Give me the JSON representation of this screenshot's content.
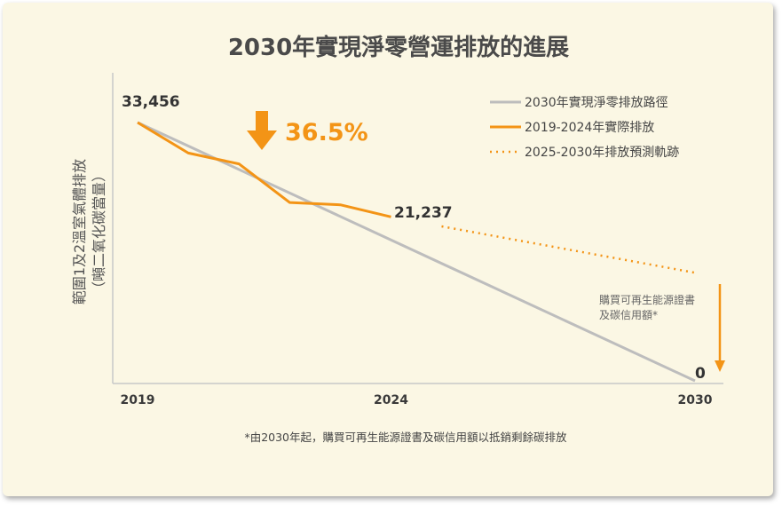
{
  "colors": {
    "background": "#fbf7e4",
    "target_path": "#bdbdbd",
    "actual": "#f39416",
    "axis": "#c8c8c8",
    "text": "#333333"
  },
  "chart_data": {
    "type": "line",
    "title": "2030年實現淨零營運排放的進展",
    "ylabel_line1": "範圍1及2溫室氣體排放",
    "ylabel_line2": "（噸二氧化碳當量）",
    "xlabel": "",
    "xlim": [
      2019,
      2030
    ],
    "ylim": [
      0,
      35500
    ],
    "x_ticks": [
      "2019",
      "2024",
      "2030"
    ],
    "series": [
      {
        "name": "2030年實現淨零排放路徑",
        "style": "solid-gray",
        "points": [
          [
            2019,
            33456
          ],
          [
            2030,
            0
          ]
        ]
      },
      {
        "name": "2019-2024年實際排放",
        "style": "solid-orange",
        "points": [
          [
            2019,
            33456
          ],
          [
            2020,
            29500
          ],
          [
            2020.5,
            28800
          ],
          [
            2021,
            28100
          ],
          [
            2022,
            23100
          ],
          [
            2023,
            22800
          ],
          [
            2024,
            21237
          ]
        ]
      },
      {
        "name": "2025-2030年排放預測軌跡",
        "style": "dotted-orange",
        "points": [
          [
            2025,
            20000
          ],
          [
            2030,
            14000
          ]
        ]
      }
    ],
    "data_labels": [
      {
        "x": 2019,
        "y": 33456,
        "text": "33,456"
      },
      {
        "x": 2024,
        "y": 21237,
        "text": "21,237"
      },
      {
        "x": 2030,
        "y": 0,
        "text": "0"
      }
    ],
    "annotation_pct": "36.5%",
    "annotation_note_line1": "購買可再生能源證書",
    "annotation_note_line2": "及碳信用額*",
    "footnote": "*由2030年起，購買可再生能源證書及碳信用額以抵銷剩餘碳排放"
  }
}
